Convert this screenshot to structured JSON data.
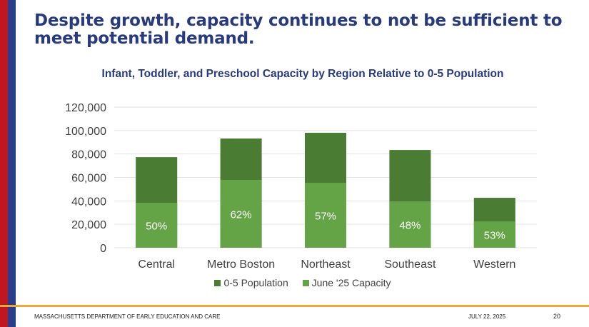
{
  "slide": {
    "headline": "Despite growth, capacity continues to not be sufficient to meet potential demand.",
    "footer": {
      "organization": "MASSACHUSETTS DEPARTMENT OF EARLY EDUCATION AND CARE",
      "date": "JULY 22, 2025",
      "page": "20"
    },
    "colors": {
      "brand_red": "#c0161f",
      "brand_blue": "#263e8c",
      "title_navy": "#283a7e",
      "footer_rule": "#e8a83a"
    }
  },
  "chart_data": {
    "type": "bar",
    "stacked": true,
    "title": "Infant, Toddler, and Preschool Capacity by Region Relative to 0-5 Population",
    "xlabel": "",
    "ylabel": "",
    "ylim": [
      0,
      120000
    ],
    "yticks": [
      0,
      20000,
      40000,
      60000,
      80000,
      100000,
      120000
    ],
    "ytick_labels": [
      "0",
      "20,000",
      "40,000",
      "60,000",
      "80,000",
      "100,000",
      "120,000"
    ],
    "grid": true,
    "legend_position": "bottom",
    "categories": [
      "Central",
      "Metro Boston",
      "Northeast",
      "Southeast",
      "Western"
    ],
    "series": [
      {
        "name": "0-5 Population",
        "color": "#4a7c34",
        "values": [
          77300,
          93200,
          98100,
          83400,
          42600
        ],
        "note": "total bar height"
      },
      {
        "name": "June '25 Capacity",
        "color": "#64a346",
        "values": [
          38400,
          57900,
          55400,
          39600,
          22500
        ]
      }
    ],
    "data_labels": [
      "50%",
      "62%",
      "57%",
      "48%",
      "53%"
    ]
  }
}
